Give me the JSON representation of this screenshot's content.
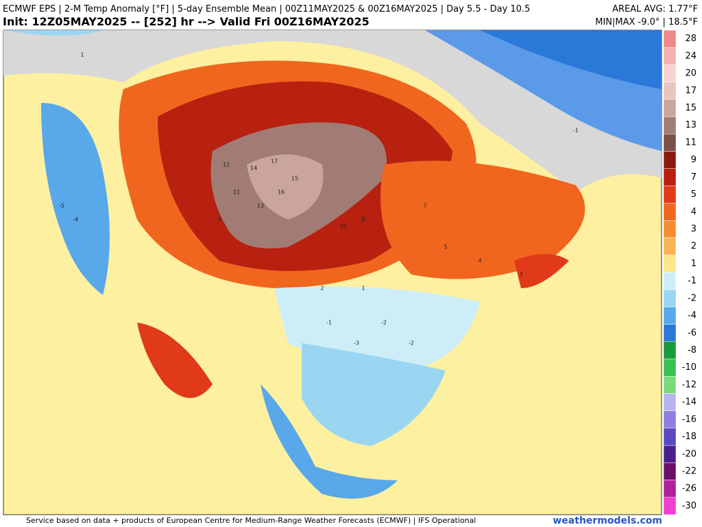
{
  "header": {
    "title": "ECMWF EPS | 2-M Temp Anomaly [°F] | 5-day Ensemble Mean | 00Z11MAY2025 & 00Z16MAY2025 | Day 5.5 - Day 10.5",
    "init": "Init: 12Z05MAY2025 -- [252] hr --> Valid Fri 00Z16MAY2025",
    "areal_avg": "AREAL AVG: 1.77°F",
    "min_max": "MIN|MAX -9.0° | 18.5°F"
  },
  "legend": {
    "labels": [
      28,
      24,
      20,
      17,
      15,
      13,
      11,
      9,
      7,
      5,
      4,
      3,
      2,
      1,
      -1,
      -2,
      -4,
      -6,
      -8,
      -10,
      -12,
      -14,
      -16,
      -18,
      -20,
      -22,
      -26,
      -30
    ],
    "colors": [
      "#f08a8a",
      "#f4b0b0",
      "#f7d2d2",
      "#e8c6c0",
      "#c9a59d",
      "#a07c74",
      "#7a5048",
      "#8a1a10",
      "#b82010",
      "#e03a18",
      "#f0661f",
      "#f88c30",
      "#fbb454",
      "#fde68a",
      "#cdeef8",
      "#9ad6f2",
      "#58a8ea",
      "#2a78d8",
      "#1a9a3a",
      "#38c050",
      "#7ada7a",
      "#b8b4f0",
      "#8c80e0",
      "#5a48c0",
      "#4a2090",
      "#6a1068",
      "#b0209a",
      "#f040d0"
    ]
  },
  "map_labels": [
    17,
    15,
    14,
    16,
    12,
    13,
    11,
    10,
    9,
    8,
    7,
    5,
    4,
    3,
    2,
    1,
    -1,
    -2,
    -3,
    -4,
    -5,
    -1,
    1,
    -2
  ],
  "footer": {
    "credit": "Service based on data + products of European Centre for Medium-Range Weather Forecasts (ECMWF) | IFS Operational",
    "brand": "weathermodels.com"
  }
}
